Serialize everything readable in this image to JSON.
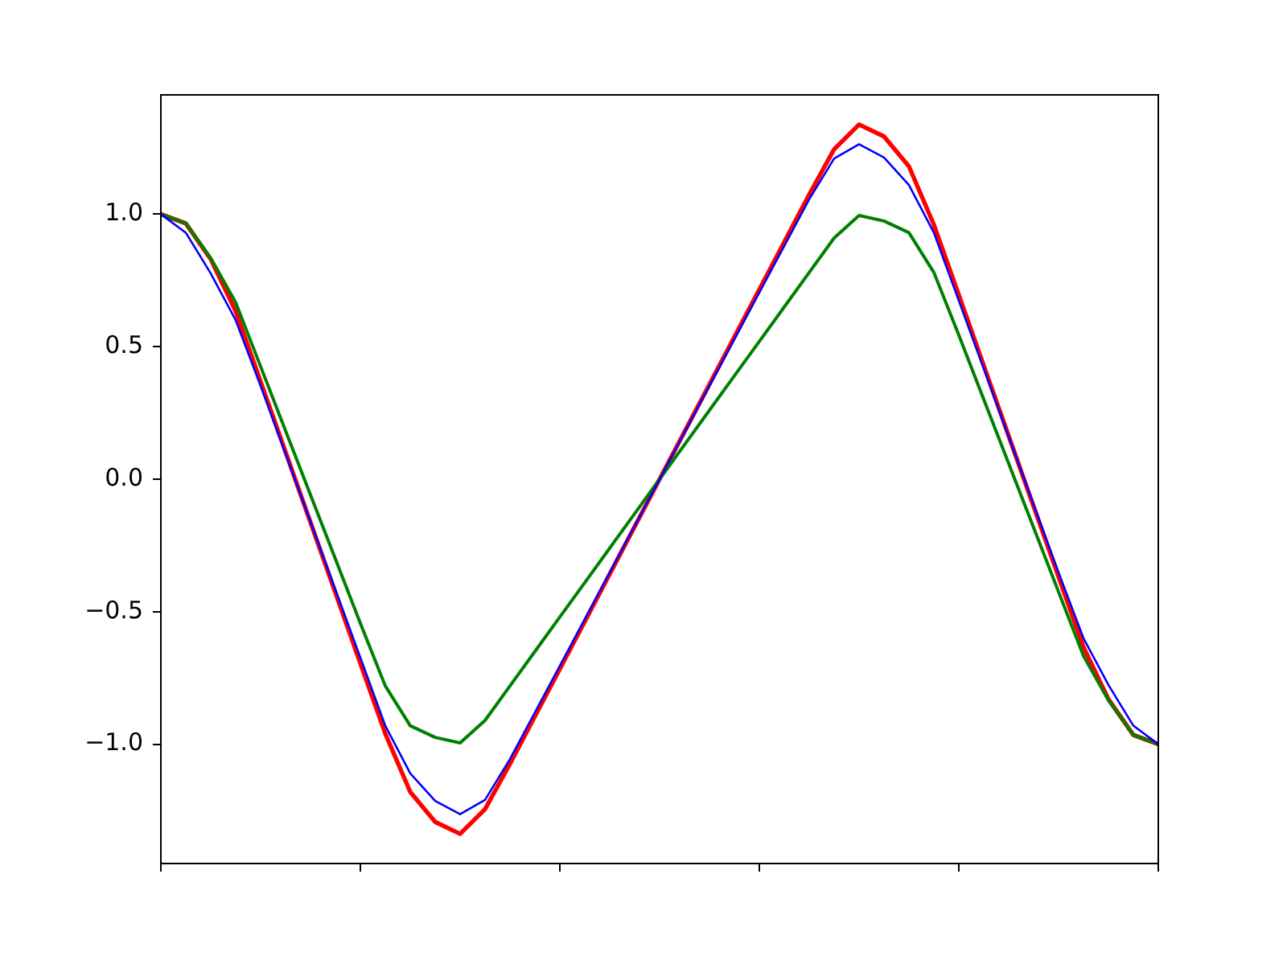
{
  "chart_data": {
    "type": "line",
    "categories": [
      null,
      null,
      null,
      null,
      null,
      null,
      null,
      null,
      null,
      null,
      null,
      null,
      null,
      null,
      null,
      null,
      null,
      null,
      null,
      null,
      null,
      null,
      null,
      null,
      null,
      null,
      null,
      null,
      null,
      null,
      null,
      null,
      null,
      null,
      null,
      null,
      null,
      null,
      null,
      null,
      null
    ],
    "series": [
      {
        "color": "#0000ff",
        "values": [
          1.0,
          0.93,
          0.776,
          0.6,
          0.352,
          0.096,
          -0.16,
          -0.417,
          -0.673,
          -0.93,
          -1.11,
          -1.214,
          -1.264,
          -1.21,
          -1.056,
          -0.88,
          -0.704,
          -0.528,
          -0.352,
          -0.176,
          0,
          0.176,
          0.352,
          0.528,
          0.704,
          0.88,
          1.056,
          1.21,
          1.264,
          1.214,
          1.11,
          0.93,
          0.673,
          0.417,
          0.16,
          -0.096,
          -0.352,
          -0.6,
          -0.776,
          -0.93,
          -1.0
        ]
      },
      {
        "color": "#008000",
        "values": [
          1.0,
          0.965,
          0.834,
          0.667,
          0.425,
          0.183,
          -0.059,
          -0.301,
          -0.544,
          -0.78,
          -0.93,
          -0.974,
          -0.995,
          -0.91,
          -0.78,
          -0.65,
          -0.52,
          -0.39,
          -0.26,
          -0.13,
          0,
          0.13,
          0.26,
          0.39,
          0.52,
          0.65,
          0.78,
          0.91,
          0.995,
          0.974,
          0.93,
          0.78,
          0.544,
          0.301,
          0.059,
          -0.183,
          -0.425,
          -0.667,
          -0.834,
          -0.965,
          -1.0
        ]
      },
      {
        "color": "#ff0000",
        "values": [
          1.0,
          0.965,
          0.83,
          0.634,
          0.368,
          0.103,
          -0.163,
          -0.429,
          -0.695,
          -0.96,
          -1.18,
          -1.293,
          -1.338,
          -1.245,
          -1.074,
          -0.895,
          -0.716,
          -0.537,
          -0.358,
          -0.179,
          0,
          0.179,
          0.358,
          0.537,
          0.716,
          0.895,
          1.074,
          1.245,
          1.338,
          1.293,
          1.18,
          0.96,
          0.695,
          0.429,
          0.163,
          -0.103,
          -0.368,
          -0.634,
          -0.83,
          -0.965,
          -1.0
        ]
      }
    ],
    "ylim": [
      -1.45,
      1.45
    ],
    "yticks": [
      {
        "value": -1,
        "label": "−1.0"
      },
      {
        "value": -0.5,
        "label": "−0.5"
      },
      {
        "value": 0,
        "label": "0.0"
      },
      {
        "value": 0.5,
        "label": "0.5"
      },
      {
        "value": 1,
        "label": "1.0"
      }
    ],
    "tick_labels": "y",
    "grid": false,
    "legend": false,
    "marker": "none",
    "line_style": "solid"
  }
}
